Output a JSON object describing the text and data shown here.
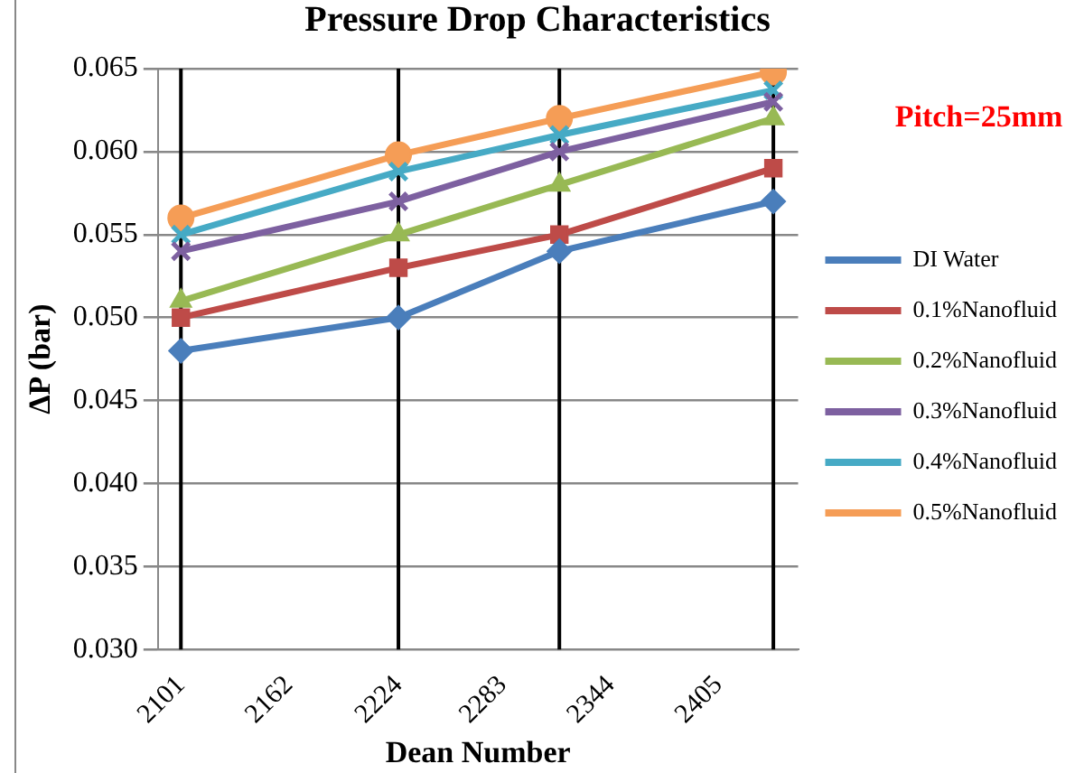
{
  "chart_data": {
    "type": "line",
    "title": "Pressure Drop Characteristics",
    "xlabel": "Dean Number",
    "ylabel": "ΔP (bar)",
    "annotations": [
      "Pitch=25mm"
    ],
    "x": [
      2101,
      2224,
      2315,
      2436
    ],
    "xlim": [
      2088,
      2450
    ],
    "xticks": [
      2101,
      2162,
      2224,
      2283,
      2344,
      2405
    ],
    "ylim": [
      0.03,
      0.065
    ],
    "yticks": [
      {
        "value": 0.03,
        "label": "0.030"
      },
      0.035,
      {
        "value": 0.04,
        "label": "0.040"
      },
      0.045,
      {
        "value": 0.05,
        "label": "0.050"
      },
      0.055,
      {
        "value": 0.06,
        "label": "0.060"
      },
      0.065
    ],
    "series": [
      {
        "name": "DI Water",
        "color": "#4a7ebb",
        "marker": "diamond",
        "values": [
          0.048,
          0.05,
          0.054,
          0.057
        ]
      },
      {
        "name": "0.1%Nanofluid",
        "color": "#be4b48",
        "marker": "square",
        "values": [
          0.05,
          0.053,
          0.055,
          0.059
        ]
      },
      {
        "name": "0.2%Nanofluid",
        "color": "#98b954",
        "marker": "triangle",
        "values": [
          0.051,
          0.055,
          0.058,
          0.062
        ]
      },
      {
        "name": "0.3%Nanofluid",
        "color": "#7d60a0",
        "marker": "cross",
        "values": [
          0.054,
          0.057,
          0.06,
          0.063
        ]
      },
      {
        "name": "0.4%Nanofluid",
        "color": "#46aac5",
        "marker": "cross",
        "values": [
          0.055,
          0.0588,
          0.061,
          0.0637
        ]
      },
      {
        "name": "0.5%Nanofluid",
        "color": "#f59d56",
        "marker": "circle",
        "values": [
          0.056,
          0.0598,
          0.062,
          0.0648
        ]
      }
    ],
    "ref_lines": [
      {
        "axis": "x",
        "value": 2101,
        "color": "#000000"
      },
      {
        "axis": "x",
        "value": 2224,
        "color": "#000000"
      },
      {
        "axis": "x",
        "value": 2315,
        "color": "#000000"
      },
      {
        "axis": "x",
        "value": 2436,
        "color": "#000000"
      }
    ],
    "grid": "y",
    "legend": "right"
  }
}
